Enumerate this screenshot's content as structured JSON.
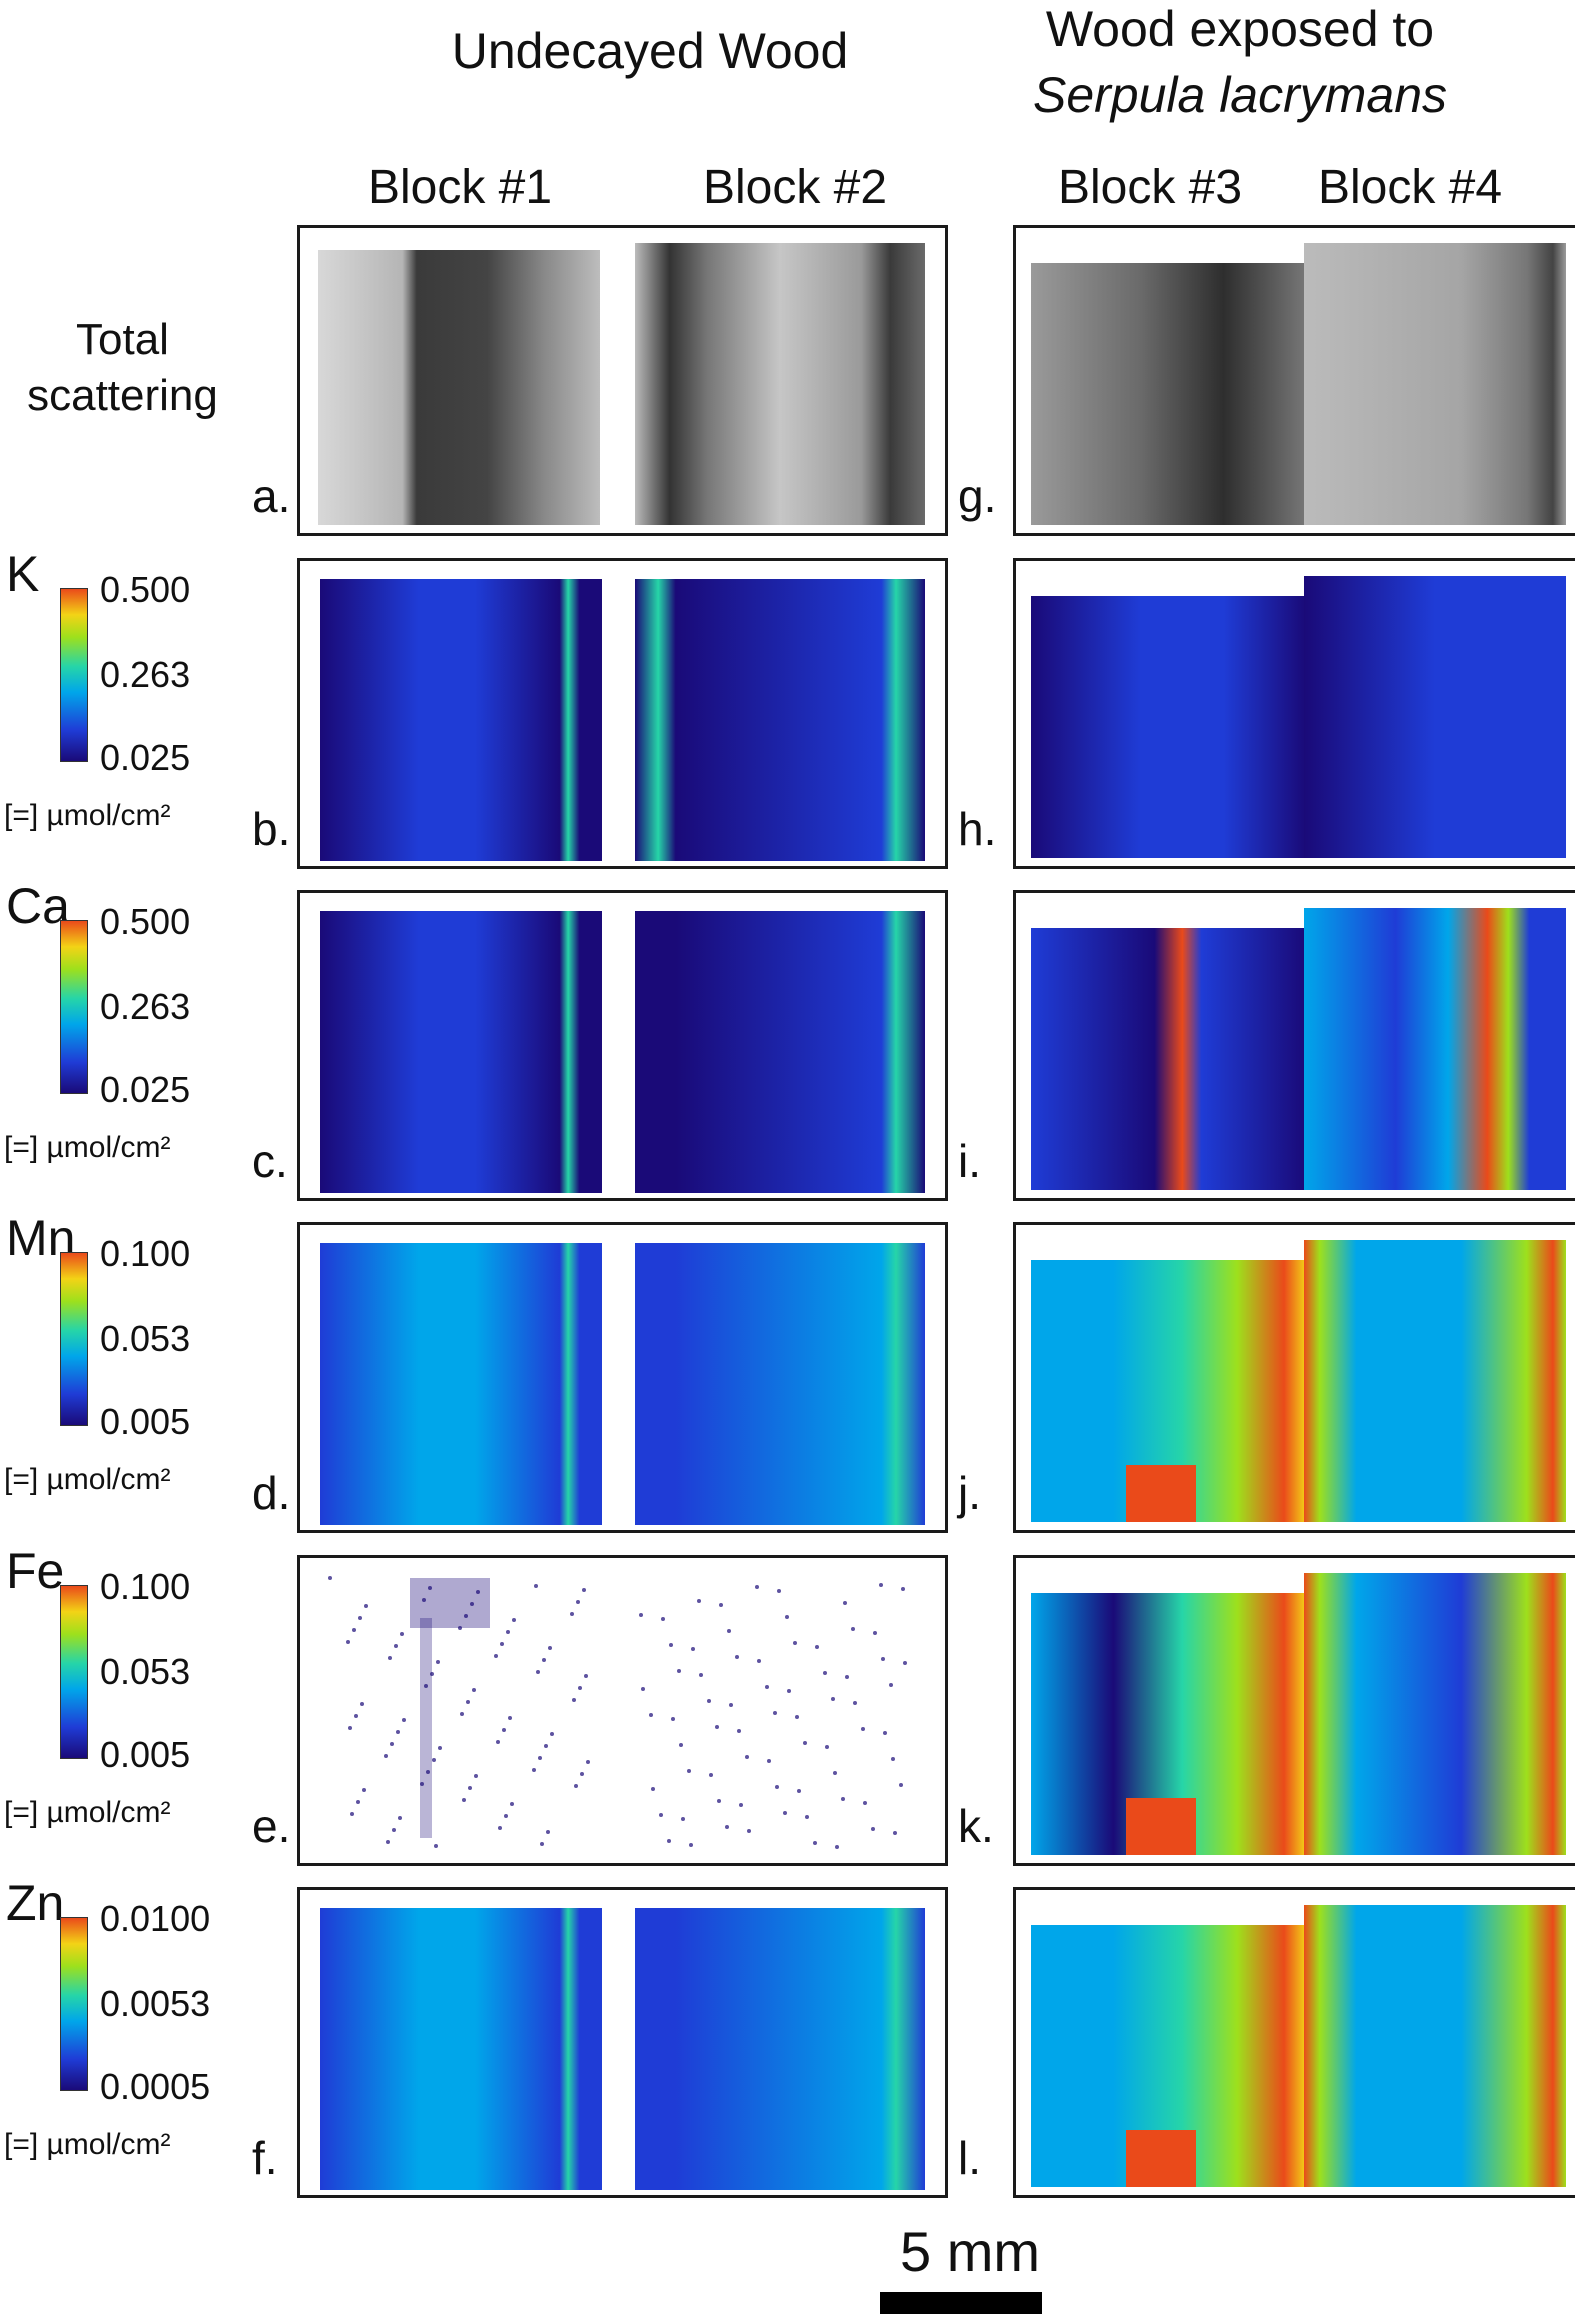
{
  "figure": {
    "group_undecayed": "Undecayed Wood",
    "group_exposed_line1": "Wood exposed to",
    "group_exposed_line2": "Serpula lacrymans",
    "columns": [
      "Block #1",
      "Block #2",
      "Block #3",
      "Block #4"
    ],
    "total_scattering_label": [
      "Total",
      "scattering"
    ],
    "unit_label": "[=] µmol/cm²",
    "scale_bar_label": "5 mm",
    "rows": [
      {
        "element": "",
        "ticks": [],
        "left": "a.",
        "right": "g."
      },
      {
        "element": "K",
        "ticks": [
          "0.500",
          "0.263",
          "0.025"
        ],
        "left": "b.",
        "right": "h."
      },
      {
        "element": "Ca",
        "ticks": [
          "0.500",
          "0.263",
          "0.025"
        ],
        "left": "c.",
        "right": "i."
      },
      {
        "element": "Mn",
        "ticks": [
          "0.100",
          "0.053",
          "0.005"
        ],
        "left": "d.",
        "right": "j."
      },
      {
        "element": "Fe",
        "ticks": [
          "0.100",
          "0.053",
          "0.005"
        ],
        "left": "e.",
        "right": "k."
      },
      {
        "element": "Zn",
        "ticks": [
          "0.0100",
          "0.0053",
          "0.0005"
        ],
        "left": "f.",
        "right": "l."
      }
    ]
  },
  "colormap": [
    "#1a0a78",
    "#1f3cd6",
    "#00a6ea",
    "#26d5a8",
    "#9ee01c",
    "#f3d316",
    "#ea4a1a"
  ]
}
